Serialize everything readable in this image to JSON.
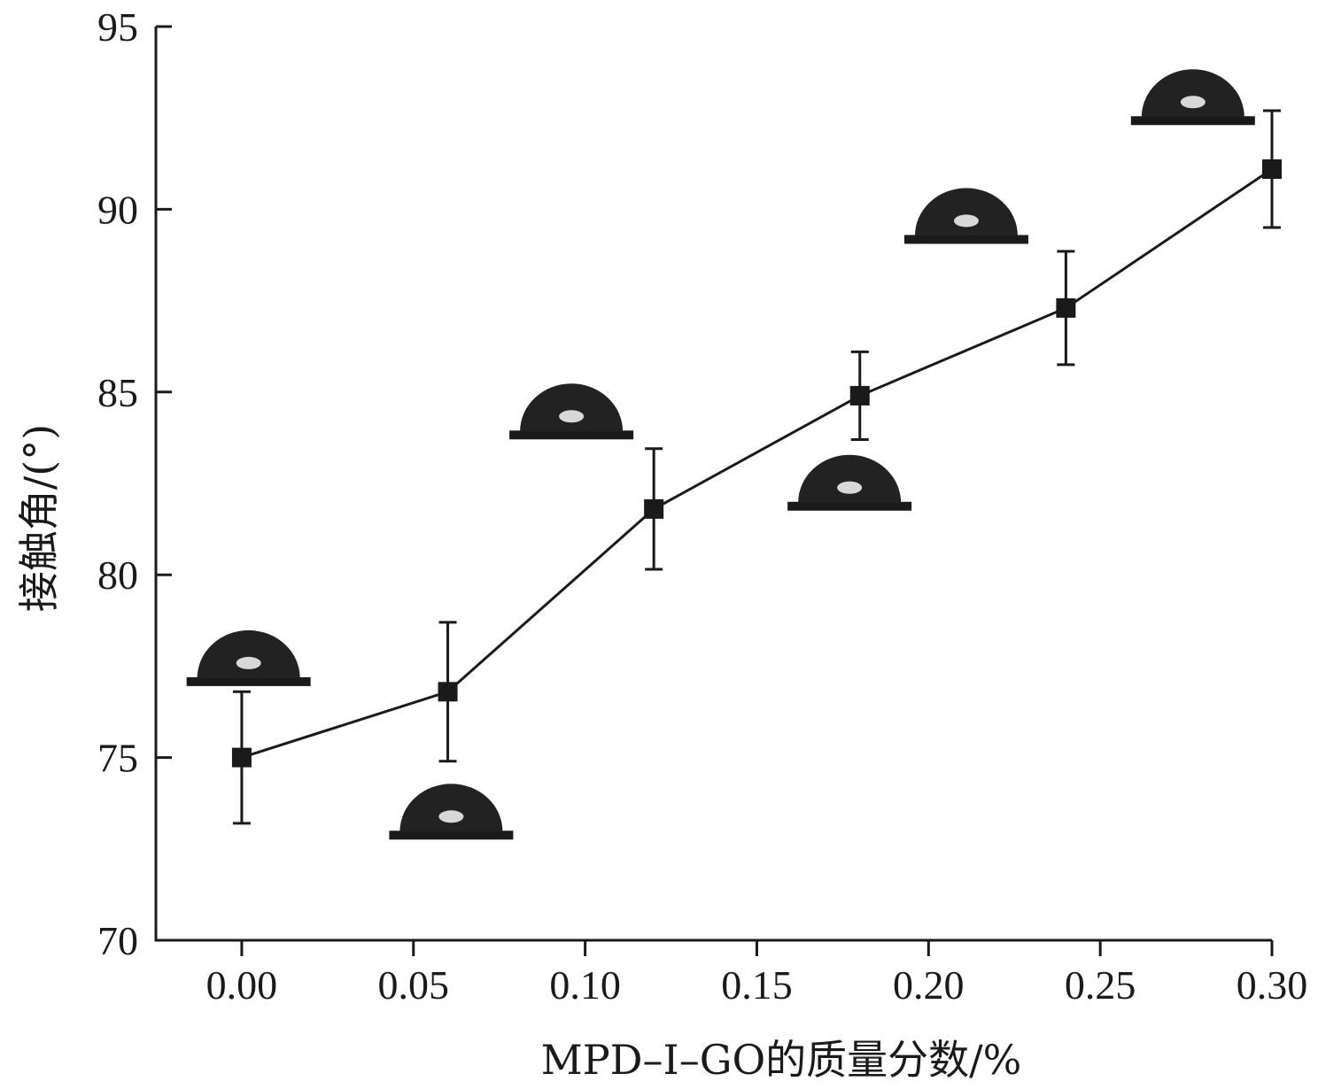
{
  "chart_data": {
    "type": "line",
    "xlabel": "MPD–I–GO的质量分数/%",
    "ylabel": "接触角/(°)",
    "xlim": [
      -0.025,
      0.3
    ],
    "ylim": [
      70,
      95
    ],
    "x_ticks": [
      "0.00",
      "0.05",
      "0.10",
      "0.15",
      "0.20",
      "0.25",
      "0.30"
    ],
    "y_ticks": [
      "70",
      "75",
      "80",
      "85",
      "90",
      "95"
    ],
    "grid": false,
    "legend": "none",
    "series": [
      {
        "x": [
          0.0,
          0.06,
          0.12,
          0.18,
          0.24,
          0.3
        ],
        "y": [
          75.0,
          76.8,
          81.8,
          84.9,
          87.3,
          91.1
        ],
        "error": [
          1.8,
          1.9,
          1.65,
          1.2,
          1.55,
          1.6
        ],
        "marker": "square",
        "color": "#1a1a1a"
      }
    ],
    "droplet_insets": [
      {
        "x": 0.002,
        "y": 77.1,
        "shape": "droplet-photo",
        "for_point": 0
      },
      {
        "x": 0.061,
        "y": 72.9,
        "shape": "droplet-photo",
        "for_point": 1
      },
      {
        "x": 0.096,
        "y": 83.85,
        "shape": "droplet-photo",
        "for_point": 2
      },
      {
        "x": 0.177,
        "y": 81.9,
        "shape": "droplet-photo",
        "for_point": 3
      },
      {
        "x": 0.211,
        "y": 89.2,
        "shape": "droplet-photo",
        "for_point": 4
      },
      {
        "x": 0.277,
        "y": 92.45,
        "shape": "droplet-photo",
        "for_point": 5
      }
    ]
  }
}
